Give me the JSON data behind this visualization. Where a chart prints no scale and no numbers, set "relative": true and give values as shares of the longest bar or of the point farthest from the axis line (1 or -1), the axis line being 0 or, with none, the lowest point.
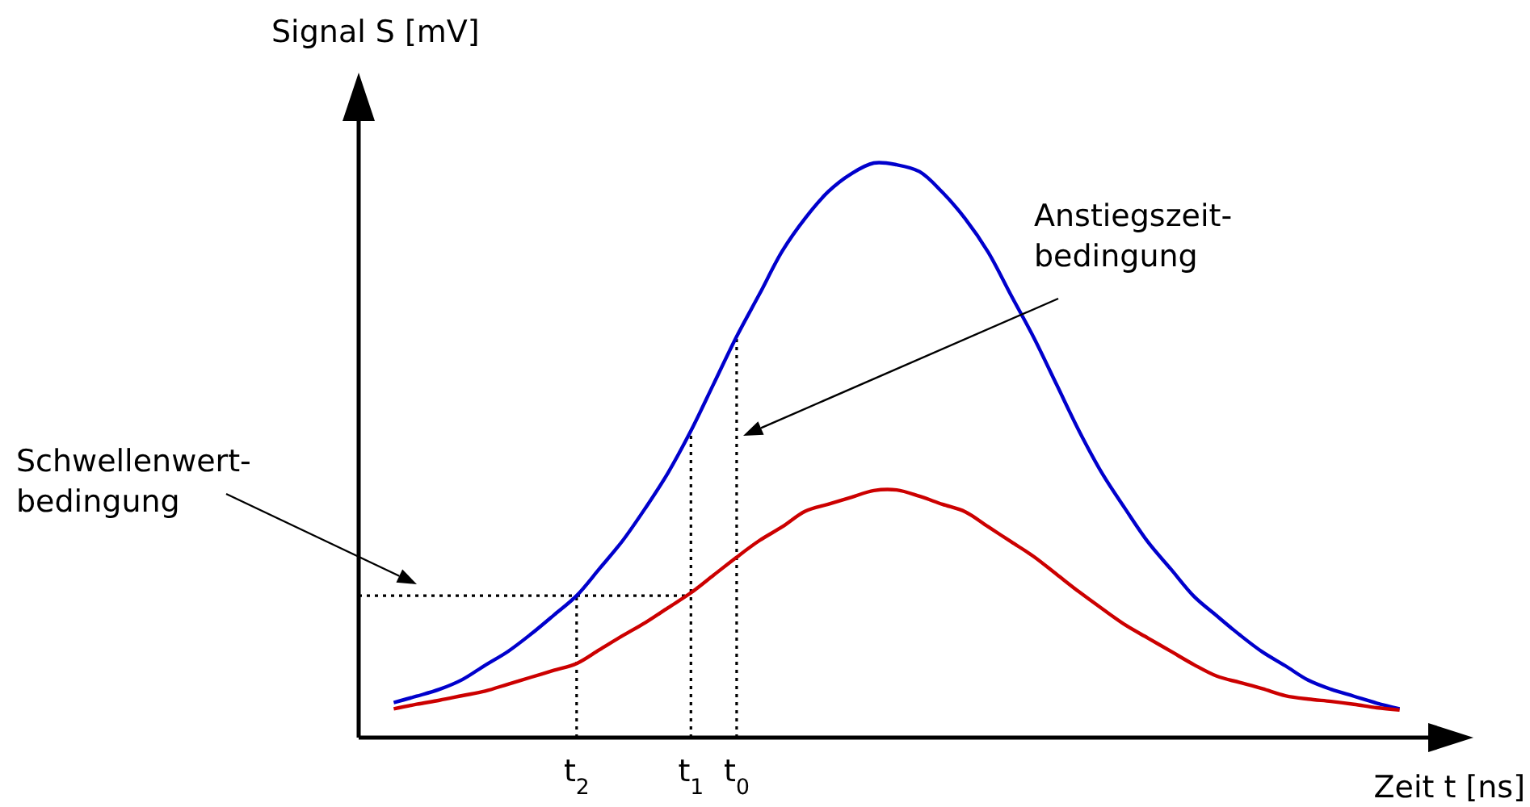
{
  "chart_data": {
    "type": "line",
    "relative": true,
    "xlabel": "Zeit t [ns]",
    "ylabel": "Signal S [mV]",
    "categories": [
      null,
      null,
      null,
      null,
      null,
      null,
      null,
      null,
      "t$_{2}$",
      null,
      null,
      null,
      null,
      "t$_{1}$",
      null,
      "t$_{0}$",
      null,
      null,
      null,
      null,
      null,
      null,
      null,
      null,
      null,
      null,
      null,
      null,
      null,
      null,
      null,
      null,
      null,
      null,
      null,
      null,
      null,
      null,
      null,
      null,
      null,
      null,
      null,
      null,
      null
    ],
    "marker": "none",
    "line_style": "solid",
    "series": [
      {
        "color": "#0000cc",
        "values": [
          0.061,
          0.072,
          0.084,
          0.101,
          0.126,
          0.15,
          0.18,
          0.213,
          0.247,
          0.294,
          0.342,
          0.399,
          0.461,
          0.534,
          0.616,
          0.698,
          0.772,
          0.847,
          0.904,
          0.95,
          0.981,
          1,
          0.997,
          0.985,
          0.949,
          0.903,
          0.845,
          0.77,
          0.696,
          0.614,
          0.532,
          0.459,
          0.398,
          0.34,
          0.293,
          0.246,
          0.212,
          0.179,
          0.149,
          0.125,
          0.1,
          0.084,
          0.072,
          0.06,
          0.05
        ]
      },
      {
        "color": "#cc0000",
        "values": [
          0.05,
          0.058,
          0.065,
          0.073,
          0.081,
          0.093,
          0.105,
          0.117,
          0.129,
          0.153,
          0.177,
          0.2,
          0.226,
          0.252,
          0.283,
          0.314,
          0.343,
          0.367,
          0.394,
          0.406,
          0.418,
          0.43,
          0.431,
          0.42,
          0.406,
          0.393,
          0.367,
          0.341,
          0.315,
          0.284,
          0.253,
          0.224,
          0.196,
          0.173,
          0.15,
          0.127,
          0.107,
          0.096,
          0.085,
          0.073,
          0.067,
          0.063,
          0.058,
          0.052,
          0.048
        ]
      }
    ],
    "ref_lines": [
      {
        "axis": "y",
        "value": 0.247,
        "line_style": "dotted"
      },
      {
        "axis": "x",
        "value": "t$_{2}$",
        "line_style": "dotted"
      },
      {
        "axis": "x",
        "value": "t$_{1}$",
        "line_style": "dotted"
      },
      {
        "axis": "x",
        "value": "t$_{0}$",
        "line_style": "dotted"
      }
    ],
    "annotations": [
      "Schwellenwert-bedingung",
      "Anstiegszeit-bedingung"
    ]
  }
}
